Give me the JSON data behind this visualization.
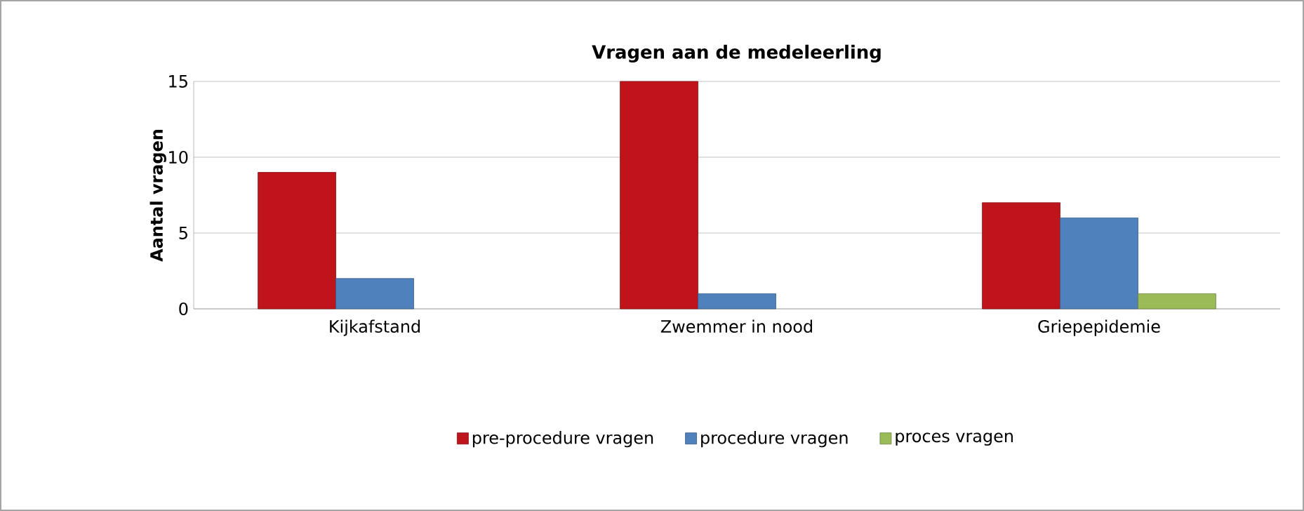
{
  "chart_data": {
    "type": "bar",
    "title": "Vragen aan de medeleerling",
    "ylabel": "Aantal vragen",
    "categories": [
      "Kijkafstand",
      "Zwemmer in nood",
      "Griepepidemie"
    ],
    "series": [
      {
        "name": "pre-procedure vragen",
        "color": "#c0141c",
        "values": [
          9,
          15,
          7
        ]
      },
      {
        "name": "procedure vragen",
        "color": "#4f81bd",
        "values": [
          2,
          1,
          6
        ]
      },
      {
        "name": "proces vragen",
        "color": "#9bbb59",
        "values": [
          null,
          null,
          1
        ]
      }
    ],
    "ylim": [
      0,
      15
    ],
    "yticks": [
      0,
      5,
      10,
      15
    ],
    "grid": "y",
    "legend": "bottom"
  }
}
